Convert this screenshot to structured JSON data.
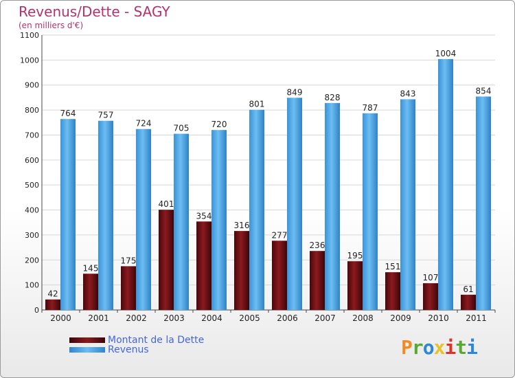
{
  "chart_data": {
    "type": "bar",
    "title": "Revenus/Dette - SAGY",
    "subtitle": "(en milliers d'€)",
    "categories": [
      "2000",
      "2001",
      "2002",
      "2003",
      "2004",
      "2005",
      "2006",
      "2007",
      "2008",
      "2009",
      "2010",
      "2011"
    ],
    "series": [
      {
        "name": "Montant de la Dette",
        "color": "#6b0f12",
        "values": [
          42,
          145,
          175,
          401,
          354,
          316,
          277,
          236,
          195,
          151,
          107,
          61
        ]
      },
      {
        "name": "Revenus",
        "color": "#4aa3e6",
        "values": [
          764,
          757,
          724,
          705,
          720,
          801,
          849,
          828,
          787,
          843,
          1004,
          854
        ]
      }
    ],
    "ylim": [
      0,
      1100
    ],
    "yticks": [
      0,
      100,
      200,
      300,
      400,
      500,
      600,
      700,
      800,
      900,
      1000,
      1100
    ],
    "grid": true,
    "legend_position": "bottom-left"
  },
  "brand": {
    "letters": [
      "P",
      "r",
      "o",
      "x",
      "i",
      "t",
      "i"
    ],
    "colors": [
      "#f08a24",
      "#5aa832",
      "#2e86d6",
      "#e6c229",
      "#d9342b",
      "#5aa832",
      "#2e86d6"
    ]
  }
}
